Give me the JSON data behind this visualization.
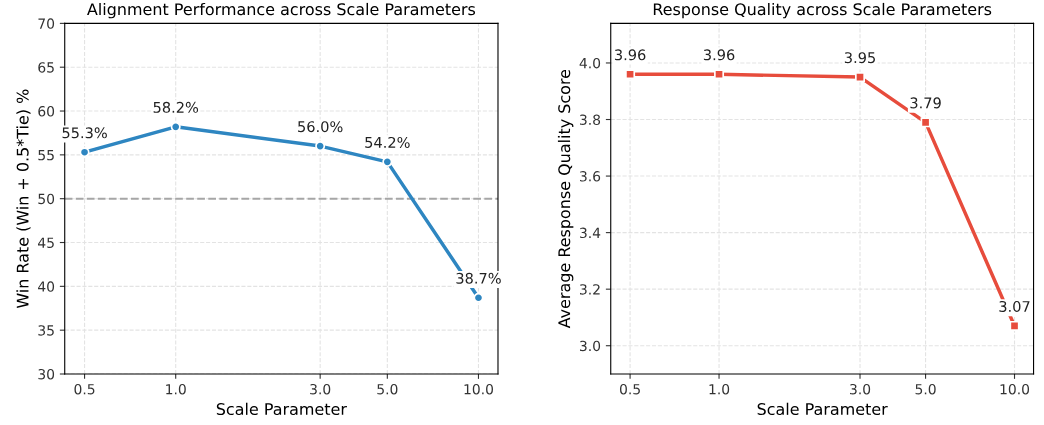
{
  "chart_data": [
    {
      "type": "line",
      "title": "Alignment Performance across Scale Parameters",
      "xlabel": "Scale Parameter",
      "ylabel": "Win Rate (Win + 0.5*Tie) %",
      "log": "x",
      "x": [
        0.5,
        1.0,
        3.0,
        5.0,
        10.0
      ],
      "series": [
        {
          "color": "#2e86c1",
          "values": [
            55.3,
            58.2,
            56.0,
            54.2,
            38.7
          ],
          "value_labels": [
            "55.3%",
            "58.2%",
            "56.0%",
            "54.2%",
            "38.7%"
          ]
        }
      ],
      "xlim": [
        0.43,
        11.6
      ],
      "xticks": [
        {
          "value": 0.5,
          "label": "0.5"
        },
        {
          "value": 1,
          "label": "1.0"
        },
        {
          "value": 3,
          "label": "3.0"
        },
        {
          "value": 5,
          "label": "5.0"
        },
        {
          "value": 10,
          "label": "10.0"
        }
      ],
      "ylim": [
        30,
        70
      ],
      "yticks": [
        30,
        35,
        40,
        45,
        50,
        55,
        60,
        65,
        70
      ],
      "ref_lines": [
        {
          "axis": "y",
          "value": 50,
          "color": "#a6a6a6",
          "line_style": "dashed"
        }
      ],
      "grid": true,
      "marker": "circle",
      "line_style": "solid"
    },
    {
      "type": "line",
      "title": "Response Quality across Scale Parameters",
      "xlabel": "Scale Parameter",
      "ylabel": "Average Response Quality Score",
      "log": "x",
      "x": [
        0.5,
        1.0,
        3.0,
        5.0,
        10.0
      ],
      "series": [
        {
          "color": "#e74c3c",
          "values": [
            3.96,
            3.96,
            3.95,
            3.79,
            3.07
          ],
          "value_labels": [
            "3.96",
            "3.96",
            "3.95",
            "3.79",
            "3.07"
          ]
        }
      ],
      "xlim": [
        0.43,
        11.6
      ],
      "xticks": [
        {
          "value": 0.5,
          "label": "0.5"
        },
        {
          "value": 1,
          "label": "1.0"
        },
        {
          "value": 3,
          "label": "3.0"
        },
        {
          "value": 5,
          "label": "5.0"
        },
        {
          "value": 10,
          "label": "10.0"
        }
      ],
      "ylim": [
        2.9,
        4.14
      ],
      "yticks": [
        {
          "value": 3.0,
          "label": "3.0"
        },
        {
          "value": 3.2,
          "label": "3.2"
        },
        {
          "value": 3.4,
          "label": "3.4"
        },
        {
          "value": 3.6,
          "label": "3.6"
        },
        {
          "value": 3.8,
          "label": "3.8"
        },
        {
          "value": 4.0,
          "label": "4.0"
        }
      ],
      "grid": true,
      "marker": "square",
      "line_style": "solid"
    }
  ]
}
